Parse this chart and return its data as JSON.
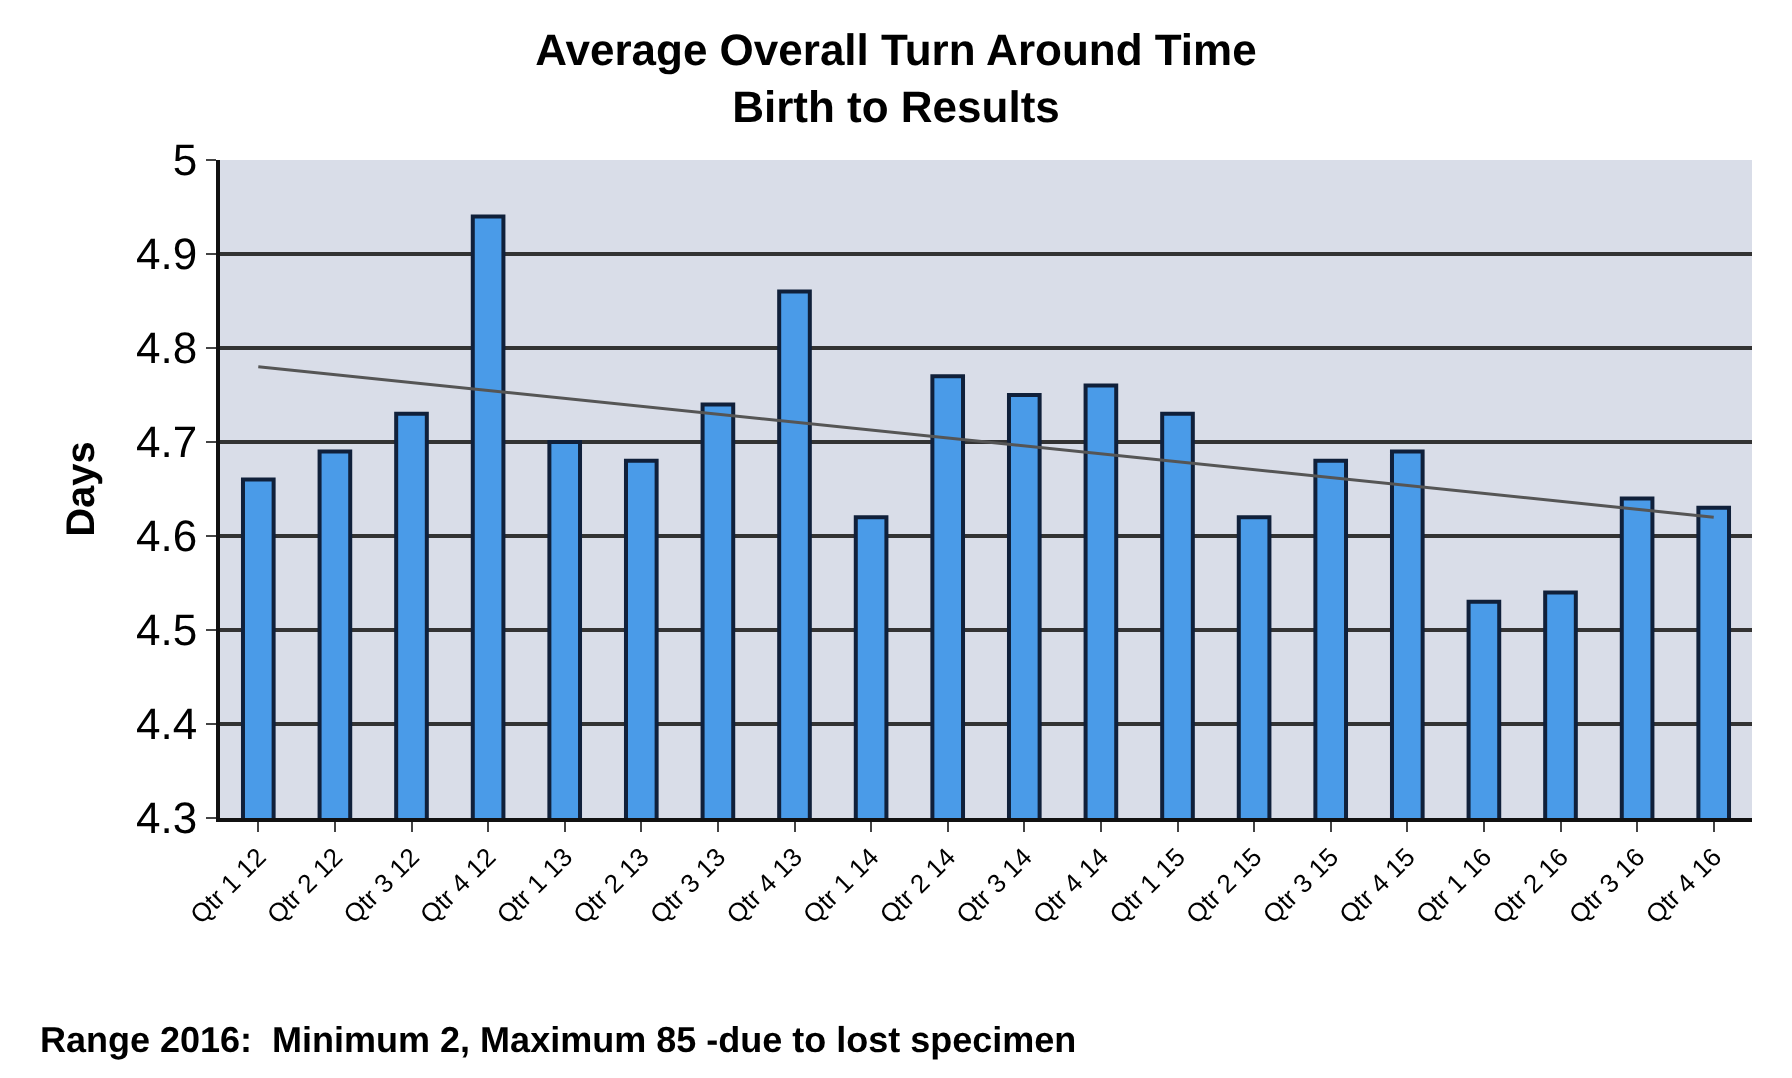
{
  "chart_data": {
    "type": "bar",
    "title": "Average Overall Turn Around Time\nBirth to Results",
    "ylabel": "Days",
    "categories": [
      "Qtr 1 12",
      "Qtr 2 12",
      "Qtr 3 12",
      "Qtr 4 12",
      "Qtr 1 13",
      "Qtr 2 13",
      "Qtr 3 13",
      "Qtr 4 13",
      "Qtr 1 14",
      "Qtr 2 14",
      "Qtr 3 14",
      "Qtr 4 14",
      "Qtr 1 15",
      "Qtr 2 15",
      "Qtr 3 15",
      "Qtr 4 15",
      "Qtr 1 16",
      "Qtr 2 16",
      "Qtr 3 16",
      "Qtr 4 16"
    ],
    "series": [
      {
        "color": "#4a9be8",
        "values": [
          4.66,
          4.69,
          4.73,
          4.94,
          4.7,
          4.68,
          4.74,
          4.86,
          4.62,
          4.77,
          4.75,
          4.76,
          4.73,
          4.62,
          4.68,
          4.69,
          4.53,
          4.54,
          4.64,
          4.63
        ]
      },
      {
        "type": "line",
        "color": "#555555",
        "x": [
          "Qtr 1 12",
          "Qtr 4 16"
        ],
        "values": [
          4.78,
          4.62
        ]
      }
    ],
    "ylim": [
      4.3,
      5
    ],
    "yticks": [
      4.3,
      4.4,
      4.5,
      4.6,
      4.7,
      4.8,
      4.9,
      5
    ],
    "grid": "y",
    "annotations": [
      "Range 2016:  Minimum 2, Maximum 85 -due to lost specimen"
    ]
  }
}
